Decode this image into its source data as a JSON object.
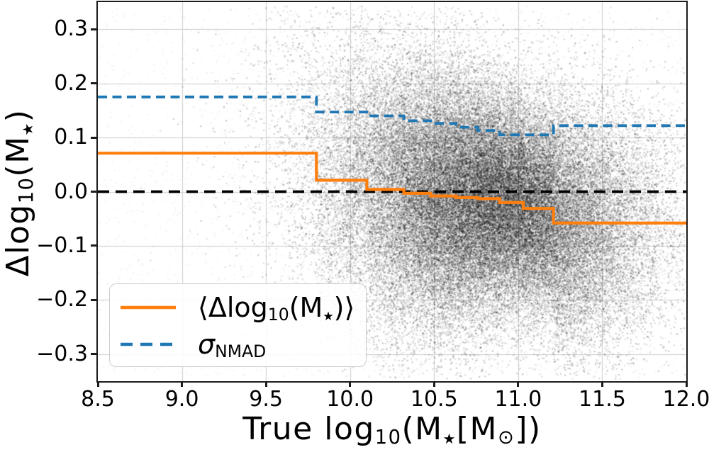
{
  "figure": {
    "background": "#ffffff",
    "grid_color": "#cdcdcd",
    "spine_color": "#1c1c1c"
  },
  "axes": {
    "xlabel_parts": [
      {
        "t": "True log"
      },
      {
        "t": "10",
        "c": "sb"
      },
      {
        "t": "(M"
      },
      {
        "t": "★",
        "c": "sbs"
      },
      {
        "t": "[M"
      },
      {
        "t": "⊙",
        "c": "sb"
      },
      {
        "t": "])"
      }
    ],
    "ylabel_parts": [
      {
        "t": "Δlog"
      },
      {
        "t": "10",
        "c": "sb"
      },
      {
        "t": "(M"
      },
      {
        "t": "★",
        "c": "sbs"
      },
      {
        "t": ")"
      }
    ],
    "xlabel_text": "True log10(M★[M⊙])",
    "ylabel_text": "Δlog10(M★)"
  },
  "legend": {
    "entries": [
      {
        "name": "mean-dlogm",
        "color": "#ff7f0e",
        "style": "solid",
        "label_text": "⟨Δlog10(M★)⟩",
        "label_parts": [
          {
            "t": "⟨Δlog"
          },
          {
            "t": "10",
            "c": "sb"
          },
          {
            "t": "(M"
          },
          {
            "t": "★",
            "c": "sbs"
          },
          {
            "t": ")⟩"
          }
        ]
      },
      {
        "name": "sigma-nmad",
        "color": "#1f77b4",
        "style": "dashed",
        "label_text": "σNMAD",
        "label_parts": [
          {
            "t": "σ",
            "c": "it"
          },
          {
            "t": "NMAD",
            "c": "sb"
          }
        ]
      }
    ]
  },
  "chart_data": {
    "type": "scatter",
    "title": "",
    "xlabel": "True log10(M★[M⊙])",
    "ylabel": "Δlog10(M★)",
    "xlim": [
      8.5,
      12.0
    ],
    "ylim": [
      -0.35,
      0.35
    ],
    "xticks": [
      8.5,
      9.0,
      9.5,
      10.0,
      10.5,
      11.0,
      11.5,
      12.0
    ],
    "xtick_labels": [
      "8.5",
      "9.0",
      "9.5",
      "10.0",
      "10.5",
      "11.0",
      "11.5",
      "12.0"
    ],
    "yticks": [
      0.3,
      0.2,
      0.1,
      0.0,
      -0.1,
      -0.2,
      -0.3
    ],
    "ytick_labels": [
      "0.3",
      "0.2",
      "0.1",
      "0.0",
      "−0.1",
      "−0.2",
      "−0.3"
    ],
    "grid": true,
    "legend_position": "lower left",
    "reference_line": {
      "y": 0.0,
      "color": "#000000",
      "style": "dashed"
    },
    "bins": {
      "x_edges": [
        8.5,
        9.8,
        10.1,
        10.32,
        10.48,
        10.63,
        10.76,
        10.89,
        11.03,
        11.21,
        12.0
      ],
      "series": [
        {
          "name": "mean_dlogM",
          "legend": "⟨Δlog10(M★)⟩",
          "color": "#ff7f0e",
          "style": "solid",
          "values": [
            0.071,
            0.021,
            0.004,
            -0.003,
            -0.008,
            -0.011,
            -0.013,
            -0.02,
            -0.031,
            -0.058
          ]
        },
        {
          "name": "sigma_nmad",
          "legend": "σNMAD",
          "color": "#1f77b4",
          "style": "dashed",
          "values": [
            0.175,
            0.147,
            0.14,
            0.131,
            0.126,
            0.119,
            0.113,
            0.105,
            0.105,
            0.122
          ]
        }
      ]
    },
    "scatter_cloud": {
      "description": "grayscale point-density cloud of individual galaxies",
      "x_center": 10.8,
      "x_sigma": 0.48,
      "y_center_follows": "mean_dlogM",
      "y_sigma_follows": "sigma_nmad",
      "y_sigma_scale": 0.95,
      "n_points": 70000,
      "point_color": "#000000"
    }
  }
}
